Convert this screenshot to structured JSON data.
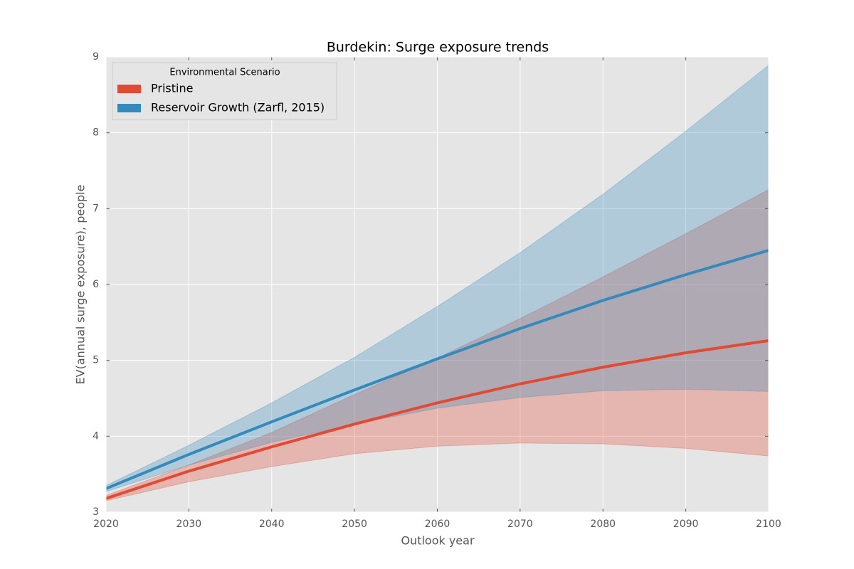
{
  "chart_data": {
    "type": "line",
    "title": "Burdekin: Surge exposure trends",
    "xlabel": "Outlook year",
    "ylabel": "EV(annual surge exposure), people",
    "legend_title": "Environmental Scenario",
    "legend": "upper left",
    "grid": true,
    "x": [
      2020,
      2030,
      2040,
      2050,
      2060,
      2070,
      2080,
      2090,
      2100
    ],
    "xlim": [
      2020,
      2100
    ],
    "xticks": [
      2020,
      2030,
      2040,
      2050,
      2060,
      2070,
      2080,
      2090,
      2100
    ],
    "ylim": [
      3,
      9
    ],
    "yticks": [
      3,
      4,
      5,
      6,
      7,
      8,
      9
    ],
    "series": [
      {
        "name": "Pristine",
        "color": "#e24a33",
        "values": [
          3.18,
          3.54,
          3.86,
          4.16,
          4.44,
          4.69,
          4.91,
          5.1,
          5.26
        ],
        "lower": [
          3.15,
          3.4,
          3.6,
          3.77,
          3.87,
          3.91,
          3.9,
          3.84,
          3.74
        ],
        "upper": [
          3.22,
          3.62,
          4.05,
          4.55,
          5.03,
          5.55,
          6.1,
          6.67,
          7.25
        ]
      },
      {
        "name": "Reservoir Growth (Zarfl, 2015)",
        "color": "#348abd",
        "values": [
          3.31,
          3.76,
          4.19,
          4.61,
          5.02,
          5.42,
          5.79,
          6.13,
          6.45
        ],
        "lower": [
          3.27,
          3.62,
          3.92,
          4.16,
          4.37,
          4.51,
          4.6,
          4.62,
          4.59
        ],
        "upper": [
          3.35,
          3.88,
          4.44,
          5.04,
          5.71,
          6.42,
          7.19,
          8.02,
          8.89
        ]
      }
    ]
  }
}
